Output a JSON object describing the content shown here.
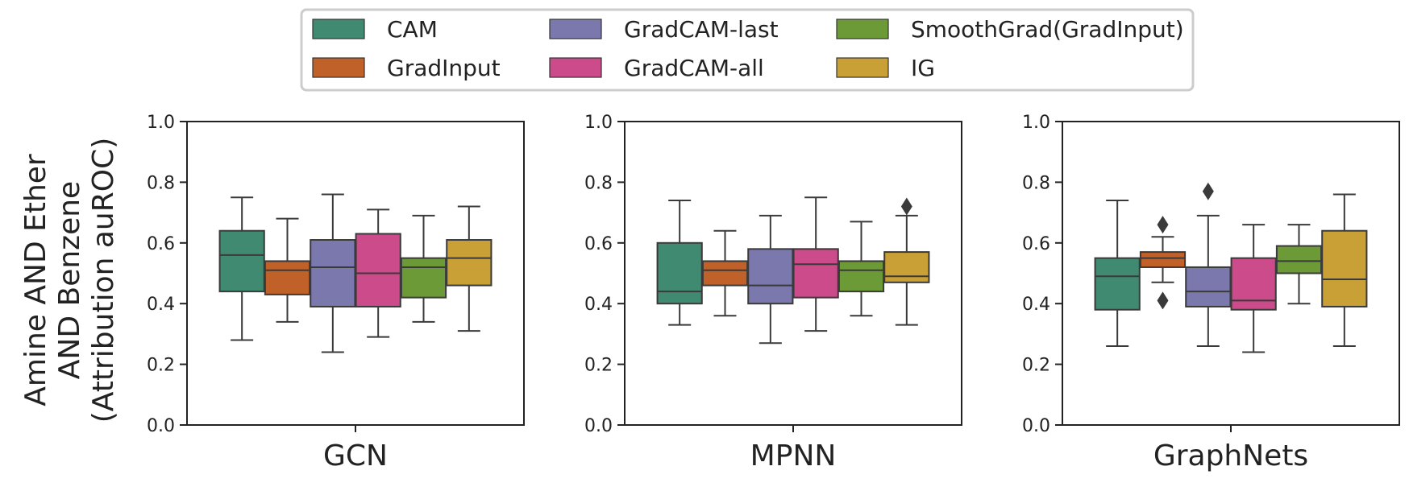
{
  "chart_data": {
    "type": "box",
    "ylabel_lines": [
      "Amine AND Ether",
      "AND Benzene",
      "(Attribution auROC)"
    ],
    "ylim": [
      0,
      1
    ],
    "yticks": [
      "0.0",
      "0.2",
      "0.4",
      "0.6",
      "0.8",
      "1.0"
    ],
    "legend": {
      "placement": "top-center",
      "entries": [
        {
          "name": "CAM",
          "color": "#3f8a70"
        },
        {
          "name": "GradInput",
          "color": "#c0612a"
        },
        {
          "name": "GradCAM-last",
          "color": "#7a78ad"
        },
        {
          "name": "GradCAM-all",
          "color": "#cc4b8a"
        },
        {
          "name": "SmoothGrad(GradInput)",
          "color": "#6c9a37"
        },
        {
          "name": "IG",
          "color": "#c9a035"
        }
      ]
    },
    "panels": [
      {
        "xlabel": "GCN",
        "boxes": [
          {
            "series": "CAM",
            "whisker_low": 0.28,
            "q1": 0.44,
            "median": 0.56,
            "q3": 0.64,
            "whisker_high": 0.75,
            "outliers": []
          },
          {
            "series": "GradInput",
            "whisker_low": 0.34,
            "q1": 0.43,
            "median": 0.51,
            "q3": 0.54,
            "whisker_high": 0.68,
            "outliers": []
          },
          {
            "series": "GradCAM-last",
            "whisker_low": 0.24,
            "q1": 0.39,
            "median": 0.52,
            "q3": 0.61,
            "whisker_high": 0.76,
            "outliers": []
          },
          {
            "series": "GradCAM-all",
            "whisker_low": 0.29,
            "q1": 0.39,
            "median": 0.5,
            "q3": 0.63,
            "whisker_high": 0.71,
            "outliers": []
          },
          {
            "series": "SmoothGrad(GradInput)",
            "whisker_low": 0.34,
            "q1": 0.42,
            "median": 0.52,
            "q3": 0.55,
            "whisker_high": 0.69,
            "outliers": []
          },
          {
            "series": "IG",
            "whisker_low": 0.31,
            "q1": 0.46,
            "median": 0.55,
            "q3": 0.61,
            "whisker_high": 0.72,
            "outliers": []
          }
        ]
      },
      {
        "xlabel": "MPNN",
        "boxes": [
          {
            "series": "CAM",
            "whisker_low": 0.33,
            "q1": 0.4,
            "median": 0.44,
            "q3": 0.6,
            "whisker_high": 0.74,
            "outliers": []
          },
          {
            "series": "GradInput",
            "whisker_low": 0.36,
            "q1": 0.46,
            "median": 0.51,
            "q3": 0.54,
            "whisker_high": 0.64,
            "outliers": []
          },
          {
            "series": "GradCAM-last",
            "whisker_low": 0.27,
            "q1": 0.4,
            "median": 0.46,
            "q3": 0.58,
            "whisker_high": 0.69,
            "outliers": []
          },
          {
            "series": "GradCAM-all",
            "whisker_low": 0.31,
            "q1": 0.42,
            "median": 0.53,
            "q3": 0.58,
            "whisker_high": 0.75,
            "outliers": []
          },
          {
            "series": "SmoothGrad(GradInput)",
            "whisker_low": 0.36,
            "q1": 0.44,
            "median": 0.51,
            "q3": 0.54,
            "whisker_high": 0.67,
            "outliers": []
          },
          {
            "series": "IG",
            "whisker_low": 0.33,
            "q1": 0.47,
            "median": 0.49,
            "q3": 0.57,
            "whisker_high": 0.69,
            "outliers": [
              0.72
            ]
          }
        ]
      },
      {
        "xlabel": "GraphNets",
        "boxes": [
          {
            "series": "CAM",
            "whisker_low": 0.26,
            "q1": 0.38,
            "median": 0.49,
            "q3": 0.55,
            "whisker_high": 0.74,
            "outliers": []
          },
          {
            "series": "GradInput",
            "whisker_low": 0.47,
            "q1": 0.52,
            "median": 0.55,
            "q3": 0.57,
            "whisker_high": 0.62,
            "outliers": [
              0.66,
              0.41
            ]
          },
          {
            "series": "GradCAM-last",
            "whisker_low": 0.26,
            "q1": 0.39,
            "median": 0.44,
            "q3": 0.52,
            "whisker_high": 0.69,
            "outliers": [
              0.77
            ]
          },
          {
            "series": "GradCAM-all",
            "whisker_low": 0.24,
            "q1": 0.38,
            "median": 0.41,
            "q3": 0.55,
            "whisker_high": 0.66,
            "outliers": []
          },
          {
            "series": "SmoothGrad(GradInput)",
            "whisker_low": 0.4,
            "q1": 0.5,
            "median": 0.54,
            "q3": 0.59,
            "whisker_high": 0.66,
            "outliers": []
          },
          {
            "series": "IG",
            "whisker_low": 0.26,
            "q1": 0.39,
            "median": 0.48,
            "q3": 0.64,
            "whisker_high": 0.76,
            "outliers": []
          }
        ]
      }
    ]
  }
}
